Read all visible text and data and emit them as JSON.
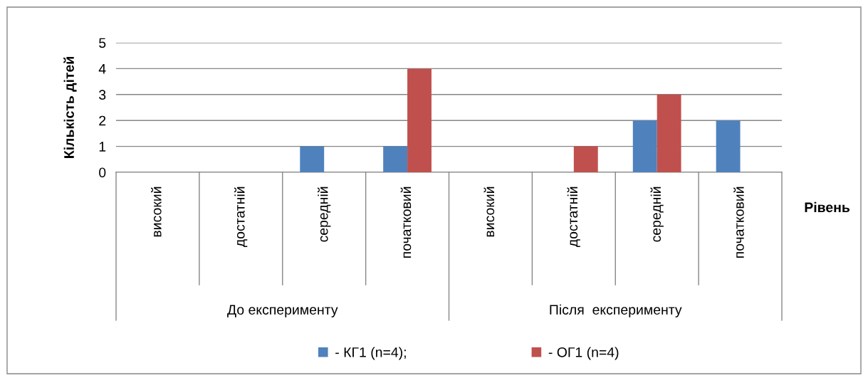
{
  "chart_data": {
    "type": "bar",
    "categories": [
      "високий",
      "достатній",
      "середній",
      "початковий",
      "високий",
      "достатній",
      "середній",
      "початковий"
    ],
    "series": [
      {
        "name": "- КГ1 (n=4);",
        "color": "#4f81bd",
        "values": [
          0,
          0,
          1,
          1,
          0,
          0,
          2,
          2
        ]
      },
      {
        "name": "- ОГ1 (n=4)",
        "color": "#c0504d",
        "values": [
          0,
          0,
          0,
          4,
          0,
          1,
          3,
          0
        ]
      }
    ],
    "ylabel": "Кількість дітей",
    "xlabel": "Рівень",
    "annotations": [
      "До експерименту",
      "Після  експерименту"
    ],
    "ylim": [
      0,
      5
    ],
    "yticks": [
      0,
      1,
      2,
      3,
      4,
      5
    ],
    "grid": "y",
    "legend": "bottom"
  }
}
